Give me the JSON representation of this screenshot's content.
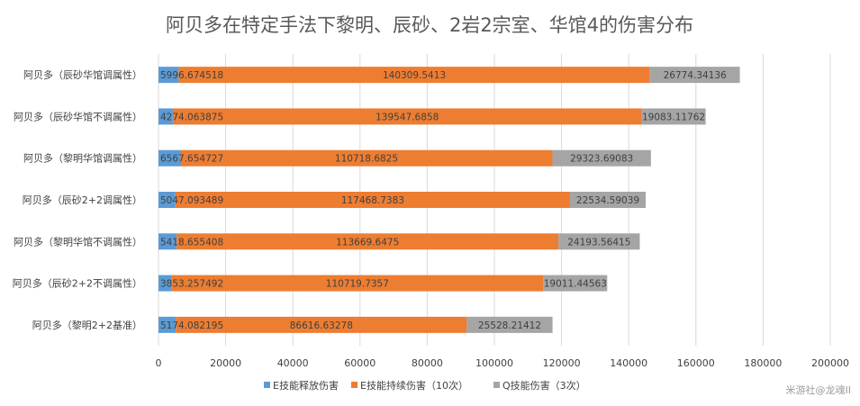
{
  "chart_data": {
    "type": "bar",
    "orientation": "horizontal",
    "stacked": true,
    "title": "阿贝多在特定手法下黎明、辰砂、2岩2宗室、华馆4的伤害分布",
    "categories": [
      "阿贝多（辰砂华馆调属性）",
      "阿贝多（辰砂华馆不调属性）",
      "阿贝多（黎明华馆调属性）",
      "阿贝多（辰砂2+2调属性）",
      "阿贝多（黎明华馆不调属性）",
      "阿贝多（辰砂2+2不调属性）",
      "阿贝多（黎明2+2基准）"
    ],
    "series": [
      {
        "name": "E技能释放伤害",
        "color": "#5b9bd5",
        "values": [
          5996.674518,
          4274.063875,
          6567.654727,
          5047.093489,
          5418.655408,
          3853.257492,
          5174.082195
        ],
        "labels": [
          "5996.674518",
          "4274.063875",
          "6567.654727",
          "5047.093489",
          "5418.655408",
          "3853.257492",
          "5174.082195"
        ]
      },
      {
        "name": "E技能持续伤害（10次）",
        "color": "#ed7d31",
        "values": [
          140309.5413,
          139547.6858,
          110718.6825,
          117468.7383,
          113669.6475,
          110719.7357,
          86616.63278
        ],
        "labels": [
          "140309.5413",
          "139547.6858",
          "110718.6825",
          "117468.7383",
          "113669.6475",
          "110719.7357",
          "86616.63278"
        ]
      },
      {
        "name": "Q技能伤害（3次）",
        "color": "#a5a5a5",
        "values": [
          26774.34136,
          19083.11762,
          29323.69083,
          22534.59039,
          24193.56415,
          19011.44563,
          25528.21412
        ],
        "labels": [
          "26774.34136",
          "19083.11762",
          "29323.69083",
          "22534.59039",
          "24193.56415",
          "19011.44563",
          "25528.21412"
        ]
      }
    ],
    "xlim": [
      0,
      200000
    ],
    "xticks": [
      "0",
      "20000",
      "40000",
      "60000",
      "80000",
      "100000",
      "120000",
      "140000",
      "160000",
      "180000",
      "200000"
    ],
    "grid": true,
    "legend": "bottom"
  },
  "watermark": "米游社@龙魂II"
}
